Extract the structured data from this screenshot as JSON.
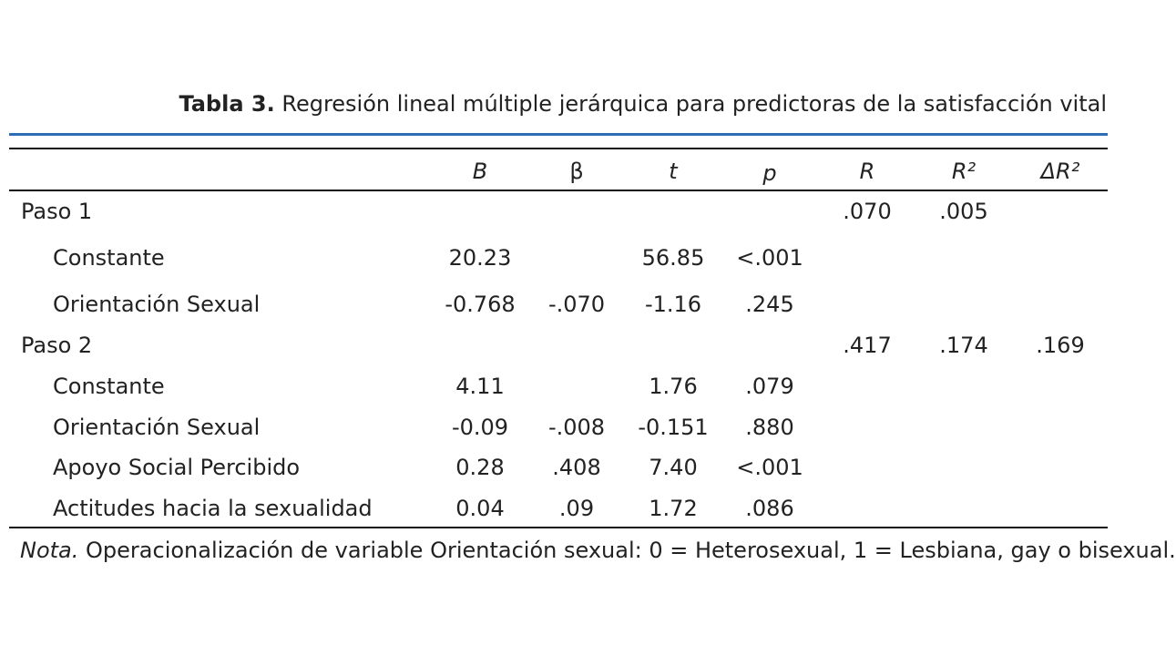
{
  "caption": {
    "label": "Tabla 3.",
    "title": "Regresión lineal múltiple jerárquica para predictoras de la satisfacción vital"
  },
  "header": {
    "B": "B",
    "beta": "β",
    "t": "t",
    "p": "p",
    "R": "R",
    "R2": "R²",
    "dR2": "ΔR²"
  },
  "rows": [
    {
      "label": "Paso 1",
      "B": "",
      "beta": "",
      "t": "",
      "p": "",
      "R": ".070",
      "R2": ".005",
      "dR2": ""
    },
    {
      "label": "Constante",
      "B": "20.23",
      "beta": "",
      "t": "56.85",
      "p": "<.001",
      "R": "",
      "R2": "",
      "dR2": ""
    },
    {
      "label": "Orientación Sexual",
      "B": "-0.768",
      "beta": "-.070",
      "t": "-1.16",
      "p": ".245",
      "R": "",
      "R2": "",
      "dR2": ""
    },
    {
      "label": "Paso 2",
      "B": "",
      "beta": "",
      "t": "",
      "p": "",
      "R": ".417",
      "R2": ".174",
      "dR2": ".169"
    },
    {
      "label": "Constante",
      "B": "4.11",
      "beta": "",
      "t": "1.76",
      "p": ".079",
      "R": "",
      "R2": "",
      "dR2": ""
    },
    {
      "label": "Orientación Sexual",
      "B": "-0.09",
      "beta": "-.008",
      "t": "-0.151",
      "p": ".880",
      "R": "",
      "R2": "",
      "dR2": ""
    },
    {
      "label": "Apoyo Social Percibido",
      "B": "0.28",
      "beta": ".408",
      "t": "7.40",
      "p": "<.001",
      "R": "",
      "R2": "",
      "dR2": ""
    },
    {
      "label": "Actitudes hacia la sexualidad",
      "B": "0.04",
      "beta": ".09",
      "t": "1.72",
      "p": ".086",
      "R": "",
      "R2": "",
      "dR2": ""
    }
  ],
  "note": {
    "label": "Nota.",
    "text": "Operacionalización de variable Orientación sexual: 0 = Heterosexual, 1 = Lesbiana, gay o bisexual."
  }
}
